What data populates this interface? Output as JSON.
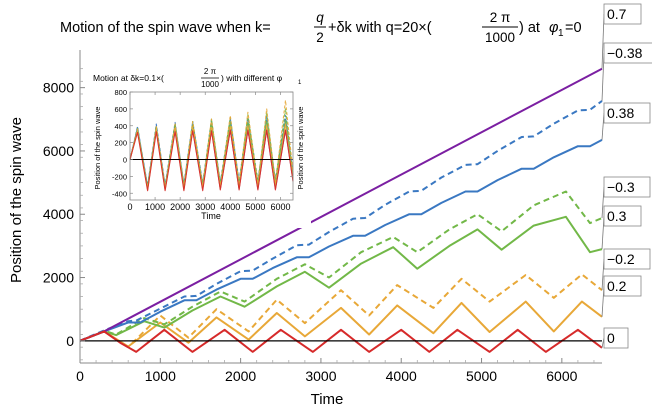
{
  "chart_data": [
    {
      "type": "line",
      "title": {
        "prefix": "Motion of the spin wave when k=",
        "frac_q_num": "q",
        "frac_q_den": "2",
        "mid": "+δk with q=20×(",
        "frac_pi_num": "2 π",
        "frac_pi_den": "1000",
        "close": ") at ",
        "phi": "φ",
        "phi_sub": "1",
        "suffix": "=0"
      },
      "xlabel": "Time",
      "ylabel": "Position of the spin wave",
      "xlim": [
        0,
        6500
      ],
      "ylim": [
        -700,
        9000
      ],
      "xticks": [
        0,
        1000,
        2000,
        3000,
        4000,
        5000,
        6000
      ],
      "yticks": [
        0,
        2000,
        4000,
        6000,
        8000
      ],
      "grid": false,
      "legend": "line-end callout labels on the right",
      "colors": {
        "purple": "#7b1fa2",
        "blue": "#3a78c2",
        "green": "#72b848",
        "orange": "#e8a838",
        "red": "#d62a2a",
        "axis": "#000000"
      },
      "series": [
        {
          "name": "0.7",
          "color": "#7b1fa2",
          "dashed": false,
          "x": [
            0,
            300,
            6500
          ],
          "y": [
            0,
            300,
            8600
          ]
        },
        {
          "name": "−0.38",
          "color": "#3a78c2",
          "dashed": true,
          "x": [
            0,
            300,
            600,
            700,
            1000,
            1300,
            1450,
            1700,
            2000,
            2150,
            2400,
            2700,
            2850,
            3100,
            3400,
            3550,
            3800,
            4100,
            4250,
            4500,
            4800,
            4950,
            5200,
            5500,
            5650,
            5900,
            6200,
            6350,
            6500
          ],
          "y": [
            0,
            330,
            620,
            640,
            1020,
            1400,
            1420,
            1800,
            2200,
            2220,
            2600,
            3020,
            3040,
            3440,
            3860,
            3880,
            4300,
            4720,
            4740,
            5160,
            5560,
            5580,
            6000,
            6440,
            6460,
            6860,
            7280,
            7300,
            7580
          ]
        },
        {
          "name": "0.38",
          "color": "#3a78c2",
          "dashed": false,
          "x": [
            0,
            300,
            600,
            750,
            1000,
            1300,
            1450,
            1700,
            2000,
            2150,
            2400,
            2700,
            2850,
            3100,
            3400,
            3550,
            3800,
            4100,
            4250,
            4500,
            4800,
            4950,
            5200,
            5500,
            5650,
            5900,
            6200,
            6350,
            6500
          ],
          "y": [
            0,
            300,
            580,
            580,
            920,
            1280,
            1280,
            1620,
            1960,
            1960,
            2300,
            2640,
            2640,
            2980,
            3320,
            3320,
            3660,
            4000,
            4000,
            4360,
            4720,
            4720,
            5080,
            5440,
            5440,
            5800,
            6150,
            6150,
            6350
          ]
        },
        {
          "name": "−0.3",
          "color": "#72b848",
          "dashed": true,
          "x": [
            0,
            300,
            450,
            800,
            1050,
            1400,
            1750,
            2050,
            2450,
            2800,
            3100,
            3500,
            3900,
            4200,
            4600,
            4950,
            5250,
            5650,
            6050,
            6350,
            6500
          ],
          "y": [
            0,
            320,
            200,
            720,
            520,
            1080,
            1560,
            1240,
            1960,
            2420,
            2000,
            2800,
            3280,
            2800,
            3520,
            4000,
            3460,
            4280,
            4720,
            3720,
            3880
          ]
        },
        {
          "name": "0.3",
          "color": "#72b848",
          "dashed": false,
          "x": [
            0,
            300,
            450,
            800,
            1050,
            1400,
            1750,
            2050,
            2450,
            2800,
            3100,
            3500,
            3900,
            4200,
            4600,
            4950,
            5250,
            5650,
            6050,
            6350,
            6500
          ],
          "y": [
            0,
            300,
            180,
            620,
            420,
            960,
            1400,
            1080,
            1720,
            2180,
            1680,
            2440,
            2960,
            2280,
            3000,
            3520,
            2880,
            3640,
            3920,
            2800,
            2900
          ]
        },
        {
          "name": "−0.2",
          "color": "#e8a838",
          "dashed": true,
          "x": [
            0,
            300,
            600,
            1000,
            1350,
            1700,
            2100,
            2450,
            2800,
            3250,
            3600,
            3950,
            4400,
            4750,
            5100,
            5550,
            5900,
            6250,
            6500
          ],
          "y": [
            0,
            300,
            -200,
            800,
            100,
            1000,
            300,
            1300,
            560,
            1600,
            800,
            1760,
            1040,
            1960,
            1240,
            2080,
            1360,
            2100,
            1600
          ]
        },
        {
          "name": "0.2",
          "color": "#e8a838",
          "dashed": false,
          "x": [
            0,
            300,
            600,
            1000,
            1350,
            1700,
            2100,
            2450,
            2800,
            3250,
            3600,
            3950,
            4400,
            4750,
            5100,
            5550,
            5900,
            6250,
            6500
          ],
          "y": [
            0,
            300,
            -180,
            580,
            -60,
            740,
            40,
            880,
            140,
            1040,
            200,
            1120,
            240,
            1200,
            280,
            1240,
            300,
            1240,
            760
          ]
        },
        {
          "name": "0",
          "color": "#d62a2a",
          "dashed": false,
          "x": [
            0,
            300,
            500,
            700,
            1050,
            1400,
            1800,
            2150,
            2500,
            2900,
            3250,
            3600,
            4000,
            4350,
            4700,
            5100,
            5450,
            5800,
            6200,
            6500
          ],
          "y": [
            0,
            300,
            -60,
            -350,
            350,
            -350,
            350,
            -350,
            350,
            -350,
            350,
            -350,
            350,
            -350,
            350,
            -350,
            350,
            -350,
            350,
            -220
          ]
        }
      ]
    },
    {
      "type": "line",
      "title": {
        "prefix": "Motion at δk=0.1×(",
        "frac_num": "2 π",
        "frac_den": "1000",
        "mid": ") with different φ",
        "sub": "1"
      },
      "xlabel": "Time",
      "ylabel": "Position of the spin wave",
      "xlim": [
        0,
        6500
      ],
      "ylim": [
        -480,
        800
      ],
      "xticks": [
        0,
        1000,
        2000,
        3000,
        4000,
        5000,
        6000
      ],
      "yticks": [
        -400,
        -200,
        0,
        200,
        400,
        600,
        800
      ],
      "grid": false,
      "period_x": [
        0,
        300,
        700,
        1050,
        1400,
        1800,
        2150,
        2500,
        2900,
        3250,
        3600,
        4000,
        4350,
        4700,
        5100,
        5450,
        5800,
        6200,
        6500
      ],
      "series": [
        {
          "color": "#7b1fa2",
          "dashed": false,
          "y": [
            0,
            350,
            -350,
            350,
            -350,
            350,
            -350,
            350,
            -350,
            350,
            -350,
            350,
            -350,
            350,
            -350,
            350,
            -350,
            350,
            -250
          ]
        },
        {
          "color": "#3a78c2",
          "dashed": false,
          "y": [
            0,
            380,
            -320,
            400,
            -320,
            420,
            -300,
            420,
            -300,
            440,
            -290,
            450,
            -280,
            460,
            -270,
            470,
            -260,
            480,
            -200
          ]
        },
        {
          "color": "#3a78c2",
          "dashed": true,
          "y": [
            0,
            390,
            -310,
            420,
            -300,
            440,
            -290,
            450,
            -280,
            470,
            -270,
            490,
            -260,
            500,
            -250,
            510,
            -240,
            520,
            -180
          ]
        },
        {
          "color": "#72b848",
          "dashed": false,
          "y": [
            0,
            360,
            -340,
            380,
            -330,
            400,
            -320,
            410,
            -310,
            420,
            -300,
            430,
            -300,
            440,
            -290,
            450,
            -290,
            460,
            -220
          ]
        },
        {
          "color": "#72b848",
          "dashed": true,
          "y": [
            0,
            370,
            -330,
            400,
            -320,
            430,
            -310,
            450,
            -300,
            480,
            -290,
            500,
            -280,
            530,
            -270,
            560,
            -260,
            600,
            -180
          ]
        },
        {
          "color": "#e8a838",
          "dashed": false,
          "y": [
            0,
            340,
            -360,
            360,
            -360,
            370,
            -360,
            380,
            -350,
            380,
            -350,
            390,
            -350,
            400,
            -340,
            410,
            -340,
            420,
            -240
          ]
        },
        {
          "color": "#e8a838",
          "dashed": true,
          "y": [
            0,
            360,
            -350,
            390,
            -340,
            420,
            -330,
            450,
            -320,
            480,
            -310,
            520,
            -300,
            560,
            -290,
            600,
            -280,
            700,
            -150
          ]
        },
        {
          "color": "#d62a2a",
          "dashed": false,
          "y": [
            0,
            320,
            -370,
            330,
            -370,
            330,
            -370,
            340,
            -370,
            340,
            -360,
            350,
            -360,
            350,
            -360,
            350,
            -360,
            350,
            -260
          ]
        }
      ]
    }
  ]
}
